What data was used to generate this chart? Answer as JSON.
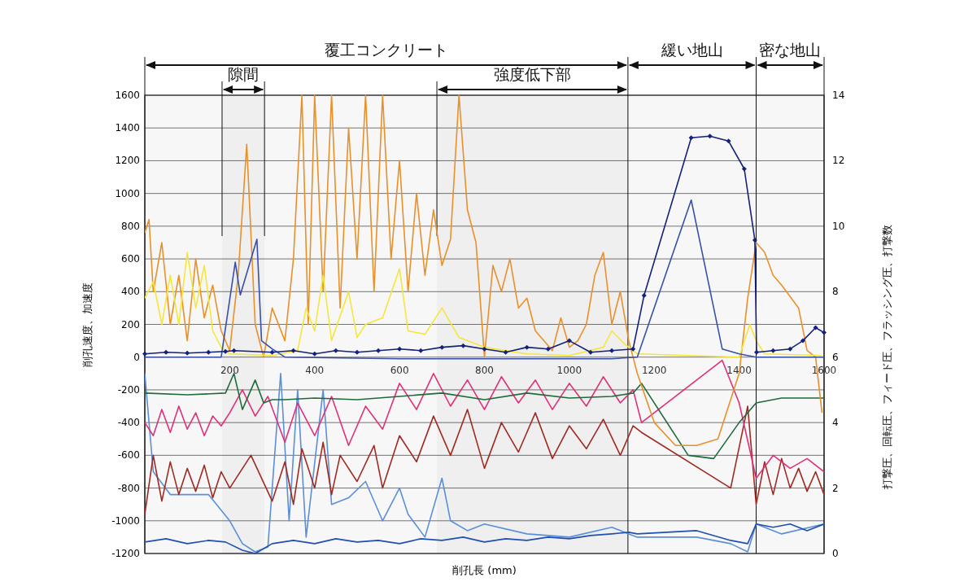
{
  "chart_data": {
    "type": "line",
    "xlabel": "削孔長 (mm)",
    "ylabel": "削孔速度、加速度",
    "y2label": "打撃圧、回転圧、フィード圧、フラッシング圧、打撃数",
    "xlim": [
      0,
      1600
    ],
    "xticks": [
      200,
      400,
      600,
      800,
      1000,
      1200,
      1400,
      1600
    ],
    "ylim": [
      -1200,
      1600
    ],
    "yticks": [
      -1200,
      -1000,
      -800,
      -600,
      -400,
      -200,
      0,
      200,
      400,
      600,
      800,
      1000,
      1200,
      1400,
      1600
    ],
    "y2lim": [
      0,
      14
    ],
    "y2ticks": [
      0,
      2,
      4,
      6,
      8,
      10,
      12,
      14
    ],
    "grid": "y",
    "ref_lines": [
      {
        "axis": "x",
        "value": 688
      },
      {
        "axis": "x",
        "value": 1138
      },
      {
        "axis": "x",
        "value": 1440
      }
    ],
    "bands": [
      {
        "axis": "x",
        "from": 0,
        "to": 1138,
        "label": "覆工コンクリート"
      },
      {
        "axis": "x",
        "from": 1138,
        "to": 1440,
        "label": "緩い地山"
      },
      {
        "axis": "x",
        "from": 1440,
        "to": 1600,
        "label": "密な地山"
      },
      {
        "axis": "x",
        "from": 182,
        "to": 282,
        "label": "隙間"
      },
      {
        "axis": "x",
        "from": 688,
        "to": 1138,
        "label": "強度低下部"
      }
    ],
    "series": [
      {
        "color": "#5b8fd8",
        "axis": "y2",
        "x": [
          0,
          20,
          60,
          150,
          200,
          230,
          260,
          290,
          320,
          340,
          360,
          380,
          420,
          440,
          480,
          520,
          560,
          600,
          620,
          660,
          700,
          720,
          760,
          800,
          900,
          1000,
          1100,
          1140,
          1160,
          1300,
          1380,
          1420,
          1440,
          1500,
          1600
        ],
        "values": [
          5.5,
          2.5,
          1.8,
          1.8,
          1.0,
          0.3,
          0.05,
          0.2,
          5.5,
          1.0,
          5.0,
          0.5,
          5.0,
          1.5,
          1.7,
          2.2,
          1.0,
          2.0,
          1.2,
          0.5,
          2.3,
          1.0,
          0.7,
          0.9,
          0.6,
          0.5,
          0.8,
          0.6,
          0.5,
          0.5,
          0.3,
          0.05,
          0.9,
          0.6,
          0.9
        ]
      },
      {
        "color": "#1f4fb0",
        "axis": "y2",
        "x": [
          0,
          50,
          100,
          150,
          190,
          230,
          260,
          300,
          350,
          400,
          450,
          500,
          550,
          600,
          650,
          700,
          750,
          800,
          850,
          900,
          950,
          1000,
          1050,
          1100,
          1140,
          1160,
          1300,
          1380,
          1420,
          1440,
          1480,
          1520,
          1560,
          1600
        ],
        "values": [
          0.35,
          0.45,
          0.3,
          0.4,
          0.35,
          0.1,
          0.0,
          0.3,
          0.4,
          0.3,
          0.45,
          0.35,
          0.4,
          0.3,
          0.45,
          0.4,
          0.5,
          0.35,
          0.45,
          0.4,
          0.5,
          0.45,
          0.55,
          0.6,
          0.65,
          0.6,
          0.7,
          0.4,
          0.3,
          0.9,
          0.8,
          0.9,
          0.7,
          0.9
        ]
      },
      {
        "color": "#a02a22",
        "axis": "y2",
        "x": [
          0,
          20,
          40,
          60,
          80,
          100,
          120,
          140,
          160,
          180,
          200,
          250,
          300,
          330,
          350,
          370,
          400,
          420,
          440,
          460,
          500,
          540,
          560,
          600,
          640,
          680,
          720,
          760,
          800,
          840,
          880,
          920,
          960,
          1000,
          1040,
          1080,
          1120,
          1150,
          1170,
          1380,
          1420,
          1440,
          1460,
          1480,
          1500,
          1520,
          1540,
          1560,
          1580,
          1600
        ],
        "values": [
          1.2,
          3.0,
          1.6,
          2.8,
          1.8,
          2.6,
          1.9,
          2.7,
          1.7,
          2.5,
          2.0,
          3.0,
          1.6,
          2.8,
          1.5,
          3.2,
          2.0,
          3.4,
          1.8,
          3.0,
          2.2,
          3.3,
          2.0,
          3.6,
          2.8,
          4.2,
          3.0,
          4.4,
          2.6,
          4.0,
          3.1,
          4.3,
          2.9,
          3.9,
          3.2,
          4.1,
          3.0,
          3.9,
          3.7,
          2.0,
          4.5,
          1.5,
          2.8,
          1.8,
          2.9,
          2.0,
          2.6,
          1.9,
          2.5,
          1.8
        ]
      },
      {
        "color": "#e0307a",
        "axis": "y2",
        "x": [
          0,
          20,
          40,
          60,
          80,
          100,
          120,
          140,
          160,
          180,
          200,
          230,
          260,
          290,
          330,
          360,
          400,
          440,
          480,
          520,
          560,
          600,
          640,
          680,
          720,
          760,
          800,
          840,
          880,
          920,
          960,
          1000,
          1040,
          1080,
          1120,
          1150,
          1170,
          1360,
          1400,
          1440,
          1480,
          1520,
          1560,
          1600
        ],
        "values": [
          4.0,
          3.6,
          4.4,
          3.7,
          4.5,
          3.8,
          4.3,
          3.6,
          4.2,
          3.9,
          4.3,
          5.0,
          4.2,
          4.8,
          3.4,
          4.6,
          3.6,
          4.8,
          3.3,
          4.5,
          3.8,
          5.2,
          4.4,
          5.5,
          4.5,
          5.3,
          4.4,
          5.4,
          4.6,
          5.3,
          4.4,
          5.2,
          4.5,
          5.4,
          4.6,
          5.0,
          4.0,
          5.9,
          4.6,
          2.3,
          3.0,
          2.6,
          2.9,
          2.5
        ]
      },
      {
        "color": "#1e6b3a",
        "axis": "y2",
        "x": [
          0,
          100,
          190,
          210,
          230,
          260,
          280,
          300,
          330,
          400,
          500,
          600,
          700,
          800,
          900,
          1000,
          1100,
          1150,
          1170,
          1280,
          1340,
          1400,
          1440,
          1500,
          1600
        ],
        "values": [
          4.9,
          4.85,
          4.9,
          5.5,
          4.4,
          5.3,
          4.6,
          4.7,
          4.7,
          4.75,
          4.7,
          4.8,
          4.9,
          4.7,
          4.9,
          4.75,
          4.8,
          4.9,
          5.2,
          3.0,
          2.9,
          4.0,
          4.6,
          4.75,
          4.75
        ]
      },
      {
        "color": "#e8902a",
        "axis": "y2",
        "x": [
          0,
          10,
          20,
          40,
          60,
          80,
          100,
          120,
          140,
          160,
          180,
          200,
          220,
          240,
          260,
          280,
          300,
          330,
          350,
          370,
          385,
          400,
          420,
          440,
          460,
          480,
          500,
          520,
          540,
          560,
          580,
          600,
          620,
          640,
          660,
          680,
          700,
          720,
          740,
          760,
          780,
          800,
          820,
          840,
          860,
          880,
          900,
          920,
          940,
          960,
          980,
          1000,
          1020,
          1040,
          1060,
          1080,
          1100,
          1120,
          1140,
          1160,
          1200,
          1250,
          1300,
          1350,
          1400,
          1420,
          1440,
          1460,
          1480,
          1500,
          1540,
          1560,
          1580,
          1595
        ],
        "values": [
          9.8,
          10.2,
          8.0,
          9.5,
          7.0,
          8.5,
          6.5,
          9.0,
          7.2,
          8.2,
          6.8,
          6.2,
          8.5,
          12.5,
          7.0,
          6.0,
          7.5,
          6.5,
          9.0,
          14,
          7.0,
          14,
          8.0,
          14,
          7.5,
          13,
          9.0,
          14,
          8.0,
          14,
          9.0,
          12,
          8.0,
          11,
          8.5,
          10.5,
          8.8,
          9.6,
          14,
          10.5,
          9.5,
          6.0,
          8.8,
          8.0,
          9.0,
          7.5,
          7.8,
          6.8,
          6.5,
          6.2,
          7.2,
          6.3,
          6.5,
          7.0,
          8.5,
          9.2,
          7.0,
          8.0,
          6.5,
          5.5,
          4.0,
          3.3,
          3.3,
          3.5,
          5.5,
          7.8,
          9.5,
          9.2,
          8.5,
          8.2,
          7.5,
          6.2,
          6.0,
          4.3
        ]
      },
      {
        "color": "#f5e63c",
        "axis": "y2",
        "x": [
          0,
          20,
          40,
          60,
          80,
          100,
          120,
          140,
          160,
          180,
          200,
          300,
          360,
          380,
          400,
          420,
          440,
          480,
          500,
          520,
          560,
          600,
          620,
          660,
          700,
          740,
          800,
          900,
          1000,
          1080,
          1100,
          1130,
          1160,
          1400,
          1425,
          1440,
          1460,
          1595
        ],
        "values": [
          7.8,
          8.3,
          7.0,
          8.5,
          7.0,
          9.2,
          7.5,
          8.8,
          6.8,
          6.3,
          6.1,
          6.05,
          6.2,
          7.5,
          6.8,
          8.5,
          6.5,
          8.0,
          6.6,
          7.0,
          7.2,
          8.7,
          6.8,
          6.7,
          7.5,
          6.6,
          6.3,
          6.1,
          6.05,
          6.3,
          6.8,
          6.4,
          6.1,
          6.0,
          7.0,
          6.5,
          6.1,
          6.05
        ]
      },
      {
        "color": "#3a4fa8",
        "x": [
          0,
          180,
          213,
          225,
          264,
          275,
          300,
          330,
          600,
          900,
          1100,
          1160,
          1287,
          1360,
          1400,
          1440,
          1600
        ],
        "values": [
          0,
          0,
          580,
          380,
          720,
          100,
          50,
          0,
          -10,
          -10,
          -10,
          0,
          960,
          50,
          20,
          0,
          0
        ]
      },
      {
        "color": "#14217a",
        "marker": "diamond",
        "x": [
          0,
          50,
          100,
          150,
          190,
          210,
          300,
          350,
          400,
          450,
          500,
          550,
          600,
          650,
          700,
          750,
          800,
          850,
          900,
          950,
          1000,
          1050,
          1100,
          1150,
          1176,
          1287,
          1331,
          1375,
          1412,
          1437,
          1441,
          1480,
          1520,
          1550,
          1580,
          1600
        ],
        "values": [
          20,
          30,
          25,
          30,
          35,
          40,
          30,
          40,
          20,
          40,
          30,
          40,
          50,
          40,
          60,
          70,
          50,
          30,
          60,
          50,
          100,
          30,
          40,
          50,
          377,
          1340,
          1350,
          1320,
          1150,
          715,
          30,
          40,
          50,
          100,
          180,
          150
        ]
      }
    ]
  }
}
